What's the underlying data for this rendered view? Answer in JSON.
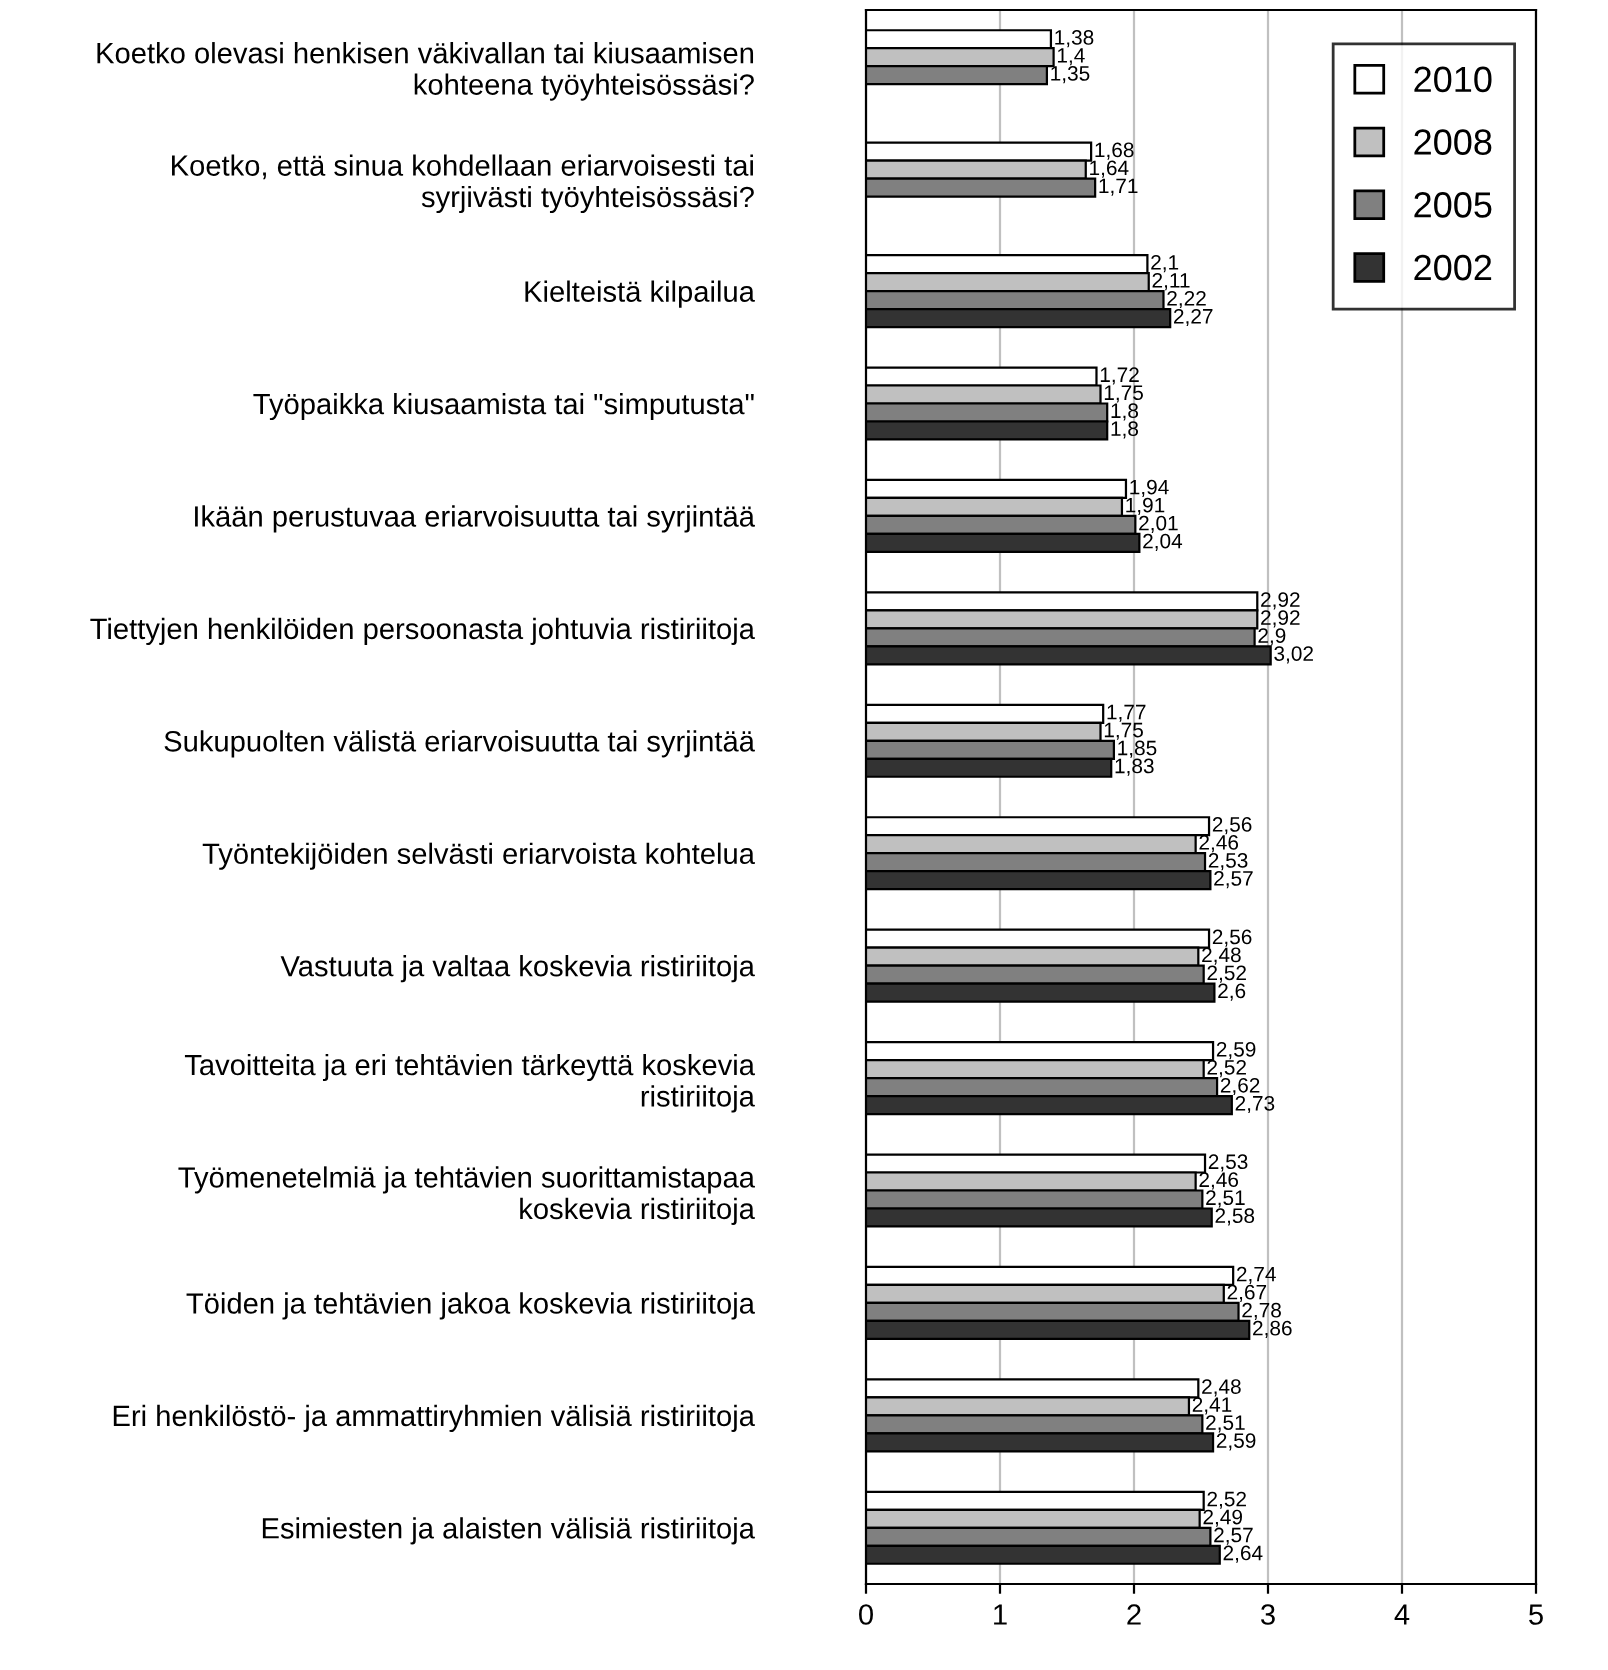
{
  "chart_data": {
    "type": "bar",
    "orientation": "horizontal",
    "categories": [
      "Koetko olevasi henkisen väkivallan tai kiusaamisen\nkohteena työyhteisössäsi?",
      "Koetko, että sinua kohdellaan eriarvoisesti tai\nsyrjivästi työyhteisössäsi?",
      "Kielteistä kilpailua",
      "Työpaikka kiusaamista tai \"simputusta\"",
      "Ikään perustuvaa eriarvoisuutta tai syrjintää",
      "Tiettyjen henkilöiden persoonasta johtuvia ristiriitoja",
      "Sukupuolten välistä eriarvoisuutta tai syrjintää",
      "Työntekijöiden selvästi eriarvoista kohtelua",
      "Vastuuta ja valtaa koskevia ristiriitoja",
      "Tavoitteita ja eri tehtävien tärkeyttä koskevia\nristiriitoja",
      "Työmenetelmiä ja tehtävien suorittamistapaa\nkoskevia ristiriitoja",
      "Töiden ja tehtävien jakoa koskevia ristiriitoja",
      "Eri henkilöstö- ja ammattiryhmien välisiä ristiriitoja",
      "Esimiesten ja alaisten välisiä ristiriitoja"
    ],
    "series": [
      {
        "name": "2010",
        "color": "#ffffff",
        "values": [
          1.38,
          1.68,
          2.1,
          1.72,
          1.94,
          2.92,
          1.77,
          2.56,
          2.56,
          2.59,
          2.53,
          2.74,
          2.48,
          2.52
        ],
        "value_labels": [
          "1,38",
          "1,68",
          "2,1",
          "1,72",
          "1,94",
          "2,92",
          "1,77",
          "2,56",
          "2,56",
          "2,59",
          "2,53",
          "2,74",
          "2,48",
          "2,52"
        ]
      },
      {
        "name": "2008",
        "color": "#c0c0c0",
        "values": [
          1.4,
          1.64,
          2.11,
          1.75,
          1.91,
          2.92,
          1.75,
          2.46,
          2.48,
          2.52,
          2.46,
          2.67,
          2.41,
          2.49
        ],
        "value_labels": [
          "1,4",
          "1,64",
          "2,11",
          "1,75",
          "1,91",
          "2,92",
          "1,75",
          "2,46",
          "2,48",
          "2,52",
          "2,46",
          "2,67",
          "2,41",
          "2,49"
        ]
      },
      {
        "name": "2005",
        "color": "#808080",
        "values": [
          1.35,
          1.71,
          2.22,
          1.8,
          2.01,
          2.9,
          1.85,
          2.53,
          2.52,
          2.62,
          2.51,
          2.78,
          2.51,
          2.57
        ],
        "value_labels": [
          "1,35",
          "1,71",
          "2,22",
          "1,8",
          "2,01",
          "2,9",
          "1,85",
          "2,53",
          "2,52",
          "2,62",
          "2,51",
          "2,78",
          "2,51",
          "2,57"
        ]
      },
      {
        "name": "2002",
        "color": "#333333",
        "values": [
          null,
          null,
          2.27,
          1.8,
          2.04,
          3.02,
          1.83,
          2.57,
          2.6,
          2.73,
          2.58,
          2.86,
          2.59,
          2.64
        ],
        "value_labels": [
          null,
          null,
          "2,27",
          "1,8",
          "2,04",
          "3,02",
          "1,83",
          "2,57",
          "2,6",
          "2,73",
          "2,58",
          "2,86",
          "2,59",
          "2,64"
        ]
      }
    ],
    "xlim": [
      0,
      5
    ],
    "xticks": [
      0,
      1,
      2,
      3,
      4,
      5
    ],
    "grid": "x",
    "legend": "top right"
  }
}
